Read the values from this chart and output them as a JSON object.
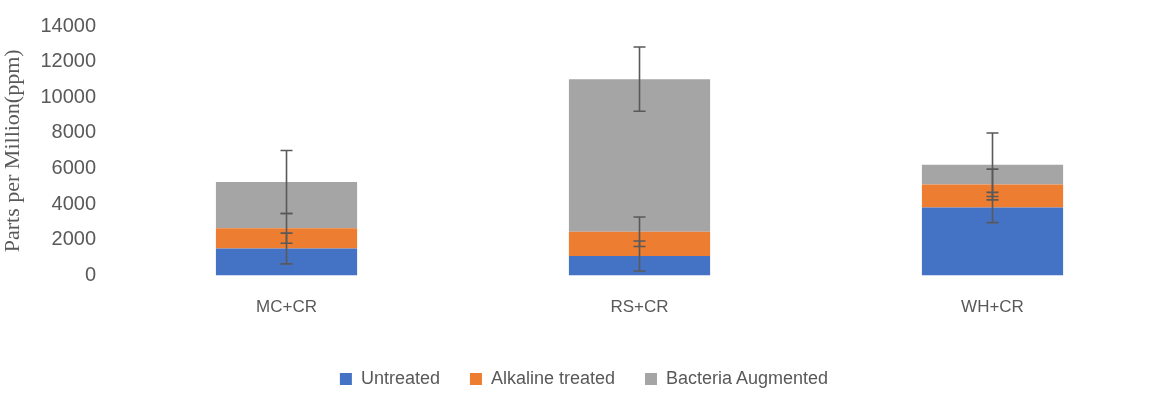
{
  "chart_data": {
    "type": "bar",
    "stacked": true,
    "ylabel": "Parts per Million(ppm)",
    "categories": [
      "MC+CR",
      "RS+CR",
      "WH+CR"
    ],
    "series": [
      {
        "name": "Untreated",
        "color": "#4472c4",
        "values": [
          1520,
          1100,
          3820
        ],
        "errors": [
          860,
          840,
          850
        ]
      },
      {
        "name": "Alkaline treated",
        "color": "#ed7d31",
        "values": [
          1130,
          1360,
          1290
        ],
        "errors": [
          835,
          830,
          860
        ]
      },
      {
        "name": "Bacteria Augmented",
        "color": "#a5a5a5",
        "values": [
          2600,
          8560,
          1110
        ],
        "errors": [
          1770,
          1800,
          1780
        ]
      }
    ],
    "ylim": [
      0,
      14000
    ],
    "yticks": [
      0,
      2000,
      4000,
      6000,
      8000,
      10000,
      12000,
      14000
    ],
    "grid": false,
    "legend": "bottom"
  }
}
